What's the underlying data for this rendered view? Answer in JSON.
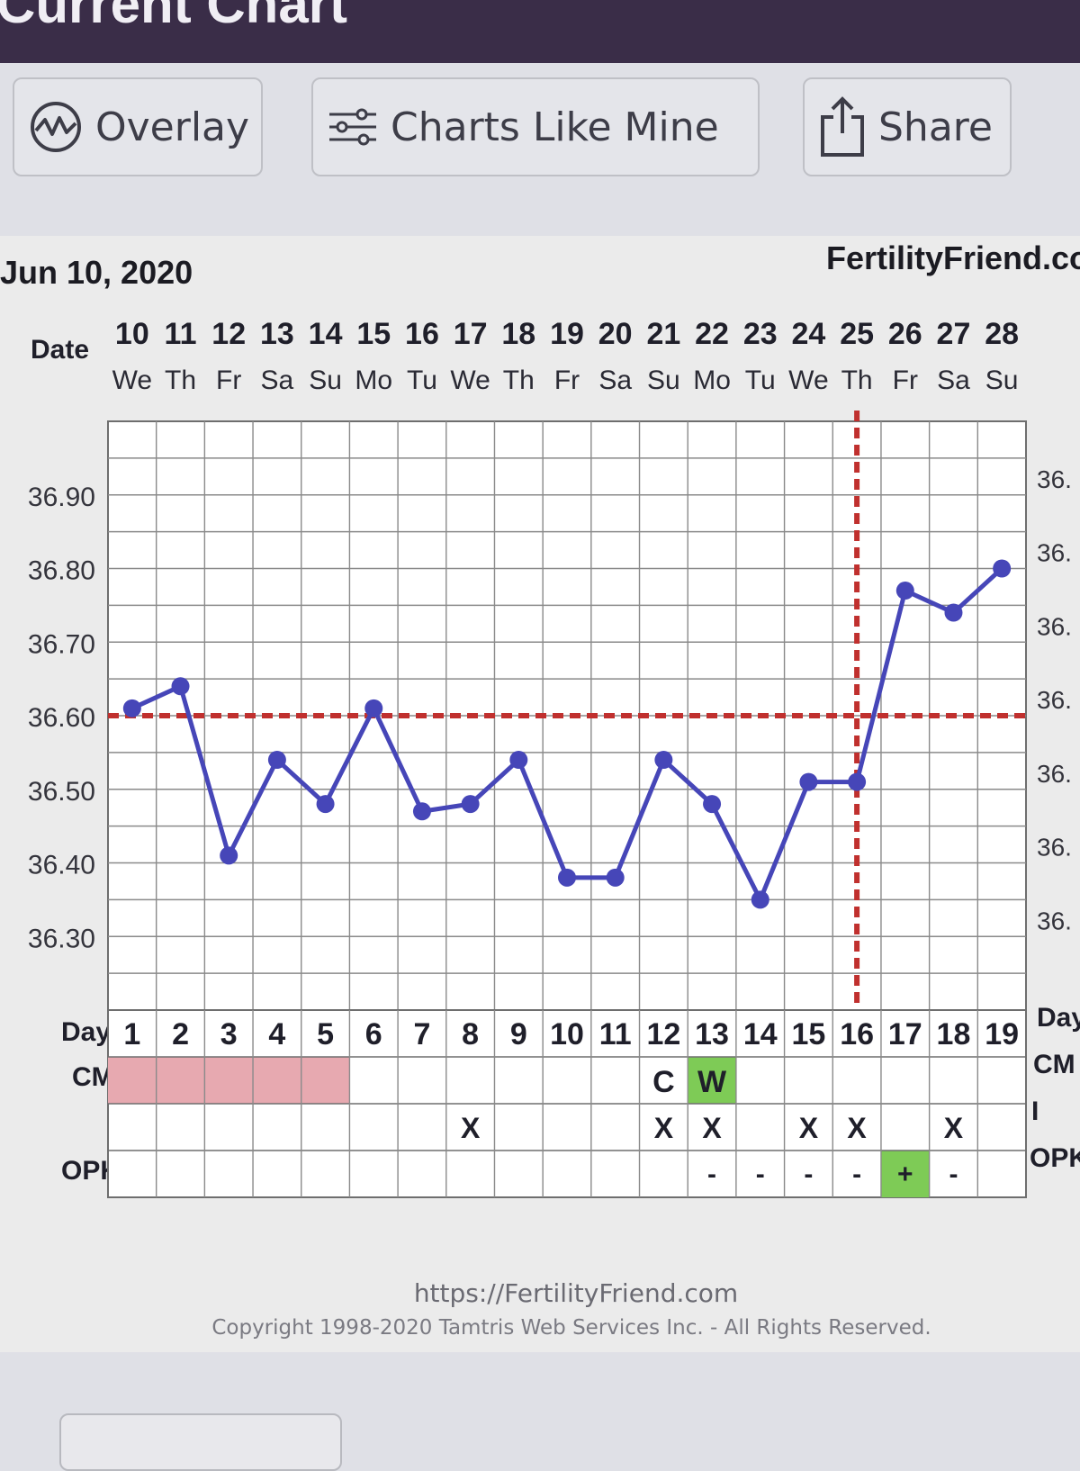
{
  "header": {
    "title": "Current Chart"
  },
  "toolbar": {
    "overlay_label": "Overlay",
    "charts_like_mine_label": "Charts Like Mine",
    "share_label": "Share"
  },
  "chart_header": {
    "start_date": "Jun 10, 2020",
    "brand": "FertilityFriend.com"
  },
  "row_labels": {
    "date": "Date",
    "day": "Day",
    "cm": "CM",
    "i": "I",
    "opk": "OPK"
  },
  "chart_data": {
    "type": "line",
    "dates": [
      "10",
      "11",
      "12",
      "13",
      "14",
      "15",
      "16",
      "17",
      "18",
      "19",
      "20",
      "21",
      "22",
      "23",
      "24",
      "25",
      "26",
      "27",
      "28"
    ],
    "weekdays": [
      "We",
      "Th",
      "Fr",
      "Sa",
      "Su",
      "Mo",
      "Tu",
      "We",
      "Th",
      "Fr",
      "Sa",
      "Su",
      "Mo",
      "Tu",
      "We",
      "Th",
      "Fr",
      "Sa",
      "Su"
    ],
    "days": [
      1,
      2,
      3,
      4,
      5,
      6,
      7,
      8,
      9,
      10,
      11,
      12,
      13,
      14,
      15,
      16,
      17,
      18,
      19
    ],
    "series": [
      {
        "name": "",
        "values": [
          36.61,
          36.64,
          36.41,
          36.54,
          36.48,
          36.61,
          36.47,
          36.48,
          36.54,
          36.38,
          36.38,
          36.54,
          36.48,
          36.35,
          36.51,
          36.51,
          36.77,
          36.74,
          36.8
        ]
      }
    ],
    "ylim": [
      36.2,
      37.0
    ],
    "yticks": [
      "36.90",
      "36.80",
      "36.70",
      "36.60",
      "36.50",
      "36.40",
      "36.30"
    ],
    "right_tick_label": "36.",
    "coverline": 36.6,
    "ovulation_day": 16,
    "line_color": "#4646b8",
    "coverline_color": "#c0302e",
    "menstruation_color": "#e7a9b0",
    "positive_color": "#7ecb56",
    "cm": [
      "",
      "",
      "",
      "",
      "",
      "",
      "",
      "",
      "",
      "",
      "",
      "C",
      "W",
      "",
      "",
      "",
      "",
      "",
      ""
    ],
    "intercourse": [
      "",
      "",
      "",
      "",
      "",
      "",
      "",
      "X",
      "",
      "",
      "",
      "X",
      "X",
      "",
      "X",
      "X",
      "",
      "X",
      ""
    ],
    "opk": [
      "",
      "",
      "",
      "",
      "",
      "",
      "",
      "",
      "",
      "",
      "",
      "",
      "-",
      "-",
      "-",
      "-",
      "+",
      "-",
      ""
    ],
    "menstruation_days": [
      1,
      2,
      3,
      4,
      5
    ],
    "grid": true,
    "legend": "none"
  },
  "footer": {
    "url": "https://FertilityFriend.com",
    "copyright": "Copyright 1998-2020 Tamtris Web Services Inc. - All Rights Reserved."
  }
}
